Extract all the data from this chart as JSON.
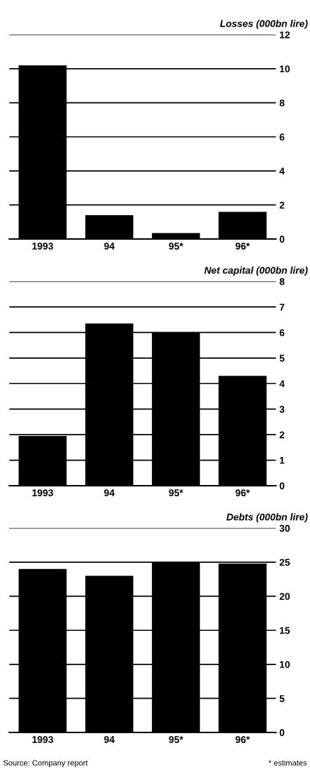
{
  "chart_data": [
    {
      "type": "bar",
      "title": "Losses (000bn lire)",
      "categories": [
        "1993",
        "94",
        "95*",
        "96*"
      ],
      "values": [
        10.2,
        1.4,
        0.35,
        1.6
      ],
      "color": "#000000",
      "ylim": [
        0,
        12
      ],
      "yticks": [
        0,
        2,
        4,
        6,
        8,
        10,
        12
      ],
      "grid": "y"
    },
    {
      "type": "bar",
      "title": "Net capital (000bn lire)",
      "categories": [
        "1993",
        "94",
        "95*",
        "96*"
      ],
      "values": [
        1.95,
        6.35,
        6.0,
        4.3
      ],
      "color": "#000000",
      "ylim": [
        0,
        8
      ],
      "yticks": [
        0,
        1,
        2,
        3,
        4,
        5,
        6,
        7,
        8
      ],
      "grid": "y"
    },
    {
      "type": "bar",
      "title": "Debts (000bn lire)",
      "categories": [
        "1993",
        "94",
        "95*",
        "96*"
      ],
      "values": [
        24,
        23,
        25,
        24.8
      ],
      "color": "#000000",
      "ylim": [
        0,
        30
      ],
      "yticks": [
        0,
        5,
        10,
        15,
        20,
        25,
        30
      ],
      "grid": "y",
      "annotations": [
        "Source: Company report",
        "* estimates"
      ]
    }
  ]
}
